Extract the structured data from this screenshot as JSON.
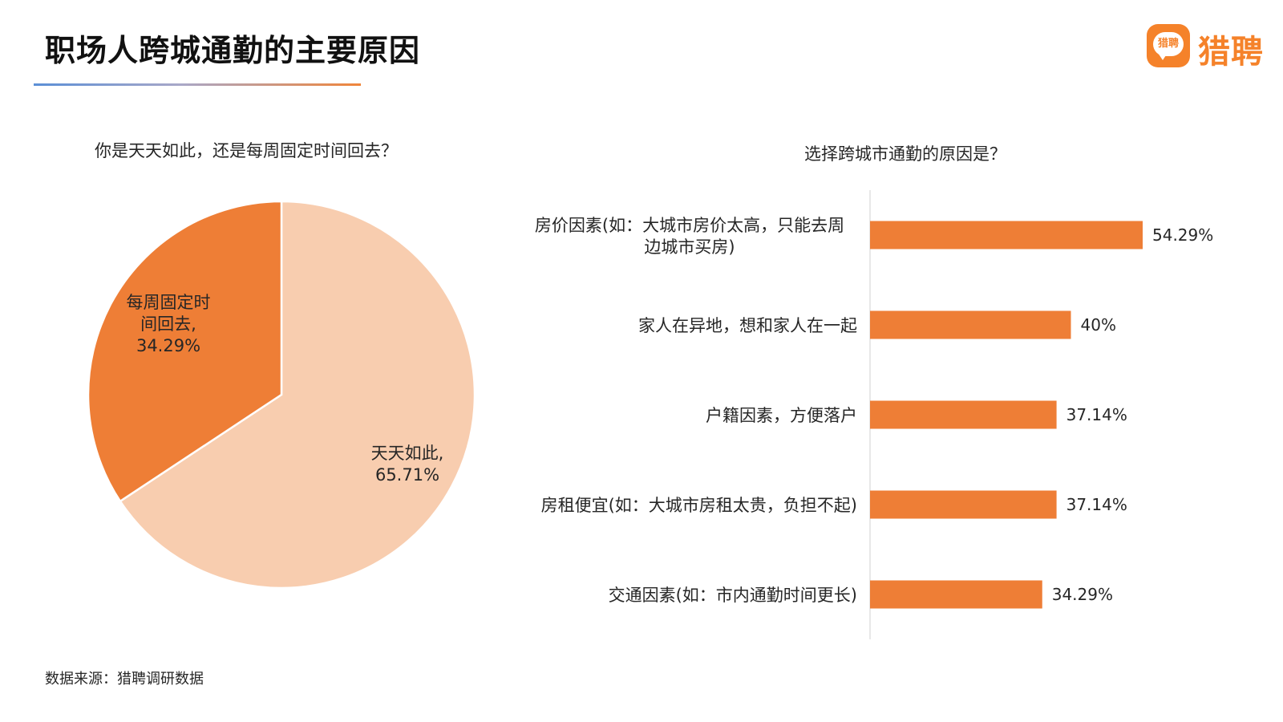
{
  "header": {
    "title": "职场人跨城通勤的主要原因",
    "logo_badge_text": "猎聘",
    "logo_text": "猎聘"
  },
  "pie_title": "你是天天如此，还是每周固定时间回去？",
  "bar_title": "选择跨城市通勤的原因是？",
  "footer": {
    "source": "数据来源：猎聘调研数据"
  },
  "colors": {
    "accent": "#ee7e36",
    "pie_light": "#f8cdaf",
    "brand": "#f5822a"
  },
  "chart_data": [
    {
      "type": "pie",
      "title": "你是天天如此，还是每周固定时间回去？",
      "slices": [
        {
          "label_lines": [
            "天天如此,",
            "65.71%"
          ],
          "value": 65.71,
          "color": "#f8cdaf"
        },
        {
          "label_lines": [
            "每周固定时",
            "间回去,",
            "34.29%"
          ],
          "value": 34.29,
          "color": "#ee7e36"
        }
      ]
    },
    {
      "type": "bar",
      "orientation": "horizontal",
      "title": "选择跨城市通勤的原因是？",
      "categories": [
        [
          "房价因素(如：大城市房价太高，只能去周",
          "边城市买房)"
        ],
        [
          "家人在异地，想和家人在一起"
        ],
        [
          "户籍因素，方便落户"
        ],
        [
          "房租便宜(如：大城市房租太贵，负担不起)"
        ],
        [
          "交通因素(如：市内通勤时间更长)"
        ]
      ],
      "values": [
        54.29,
        40,
        37.14,
        37.14,
        34.29
      ],
      "value_labels": [
        "54.29%",
        "40%",
        "37.14%",
        "37.14%",
        "34.29%"
      ],
      "color": "#ee7e36"
    }
  ]
}
